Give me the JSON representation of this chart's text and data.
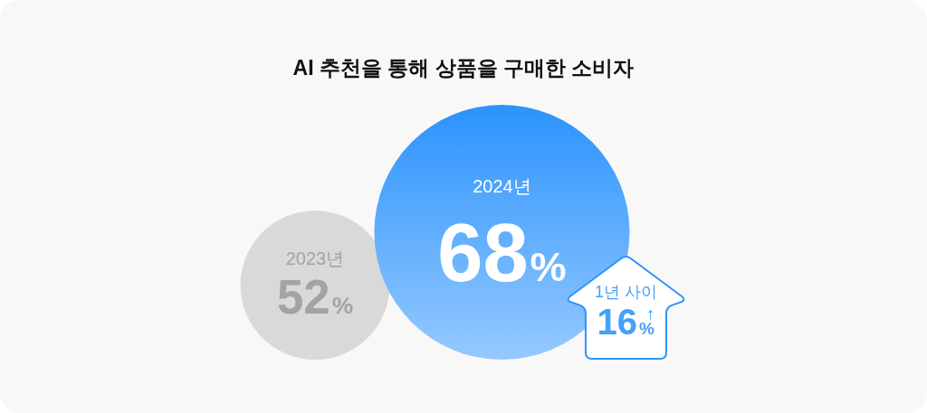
{
  "chart_data": {
    "type": "other",
    "title": "AI 추천을 통해 상품을 구매한 소비자",
    "categories": [
      "2023년",
      "2024년"
    ],
    "values": [
      52,
      68
    ],
    "value_labels": [
      "52%",
      "68%"
    ],
    "colors": [
      "#d9d9d9",
      "#2b93fd"
    ],
    "annotations": [
      "1년 사이",
      "16%$^{↑}$"
    ]
  }
}
